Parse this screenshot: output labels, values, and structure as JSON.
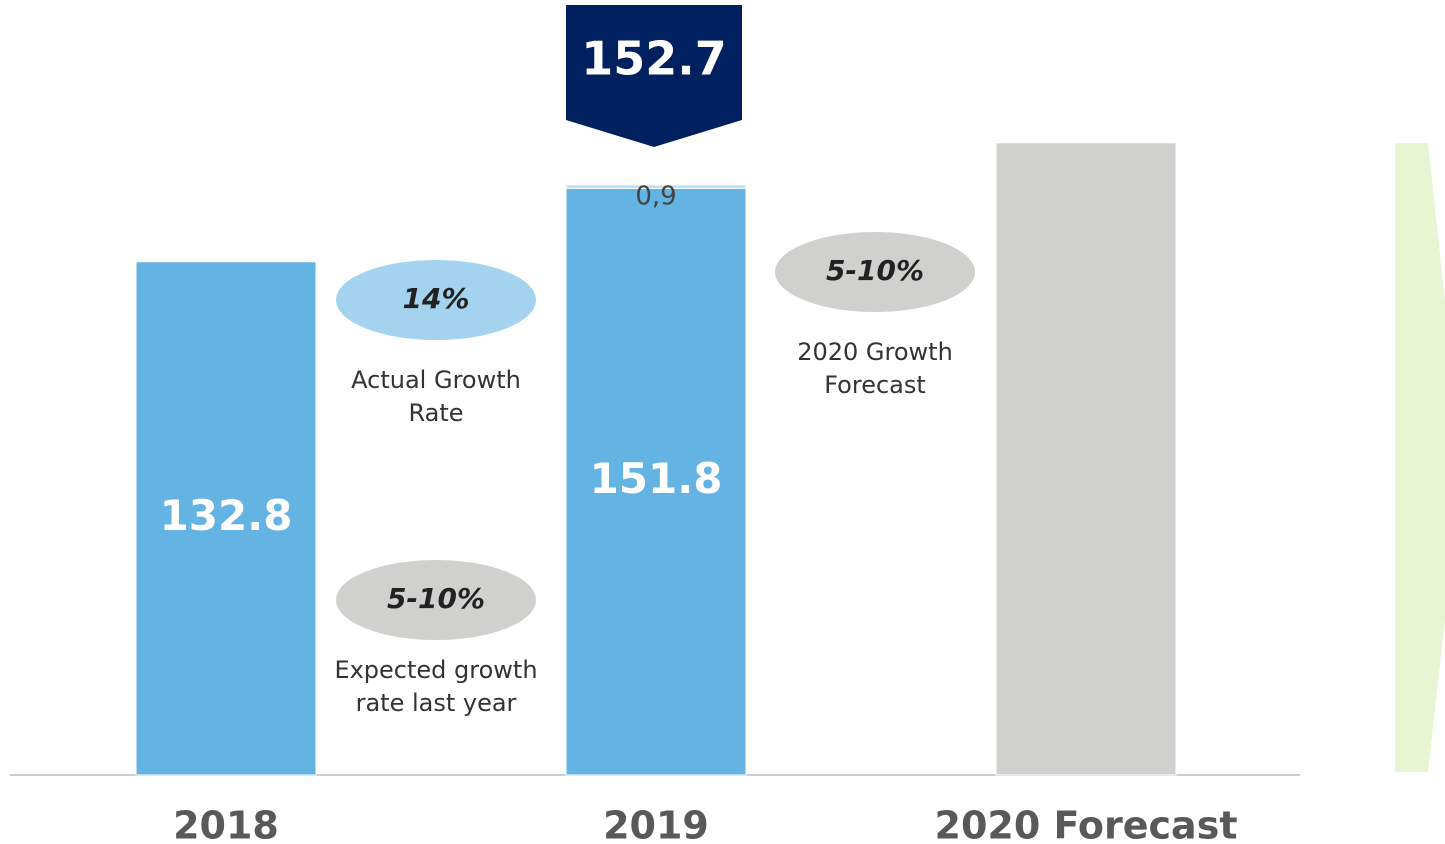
{
  "chart_data": {
    "type": "bar",
    "stacked": true,
    "categories": [
      "2018",
      "2019",
      "2020 Forecast"
    ],
    "series": [
      {
        "color": "#63b3e3",
        "values": [
          132.8,
          151.8,
          null
        ]
      },
      {
        "color": "#bcdff3",
        "values": [
          null,
          0.9,
          null
        ],
        "value_labels": [
          null,
          "0,9",
          null
        ]
      },
      {
        "color": "#d0d0cf",
        "values": [
          null,
          null,
          163.6
        ]
      }
    ],
    "totals": [
      null,
      152.7,
      null
    ],
    "total_color": "#002060",
    "ylim": [
      0,
      170
    ],
    "annotations": [
      {
        "label": "14%",
        "caption": "Actual Growth Rate",
        "color": "#a3d3ef"
      },
      {
        "label": "5-10%",
        "caption": "Expected growth rate last year",
        "color": "#d0d0cf"
      },
      {
        "label": "5-10%",
        "caption": "2020 Growth Forecast",
        "color": "#d0d0cf"
      }
    ]
  }
}
